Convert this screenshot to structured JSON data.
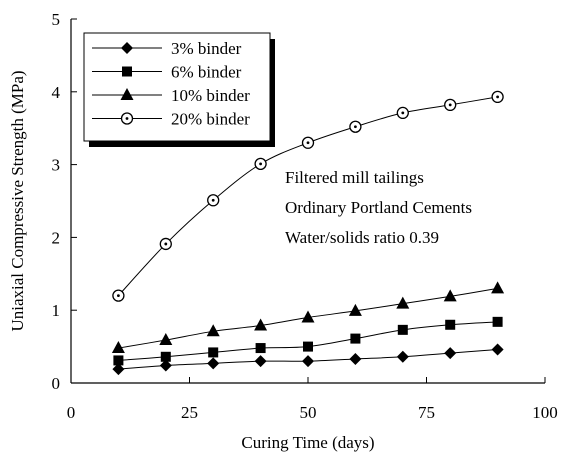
{
  "chart_data": {
    "type": "line",
    "title": "",
    "xlabel": "Curing Time (days)",
    "ylabel": "Uniaxial Compressive Strength (MPa)",
    "xlim": [
      0,
      100
    ],
    "ylim": [
      0,
      5
    ],
    "x_ticks": [
      0,
      25,
      50,
      75,
      100
    ],
    "y_ticks": [
      0,
      1,
      2,
      3,
      4,
      5
    ],
    "grid": false,
    "legend_position": "top-left",
    "x": [
      10,
      20,
      30,
      40,
      50,
      60,
      70,
      80,
      90
    ],
    "series": [
      {
        "name": "3% binder",
        "marker": "diamond",
        "values": [
          0.19,
          0.24,
          0.27,
          0.3,
          0.3,
          0.33,
          0.36,
          0.41,
          0.46
        ]
      },
      {
        "name": "6% binder",
        "marker": "square",
        "values": [
          0.31,
          0.36,
          0.42,
          0.48,
          0.5,
          0.61,
          0.73,
          0.8,
          0.84
        ]
      },
      {
        "name": "10% binder",
        "marker": "triangle",
        "values": [
          0.48,
          0.59,
          0.71,
          0.79,
          0.9,
          0.99,
          1.09,
          1.19,
          1.3
        ]
      },
      {
        "name": "20% binder",
        "marker": "open-circle-dot",
        "values": [
          1.2,
          1.91,
          2.51,
          3.01,
          3.3,
          3.52,
          3.71,
          3.82,
          3.93
        ]
      }
    ],
    "annotations": [
      "Filtered mill tailings",
      "Ordinary Portland Cements",
      "Water/solids ratio 0.39"
    ]
  }
}
